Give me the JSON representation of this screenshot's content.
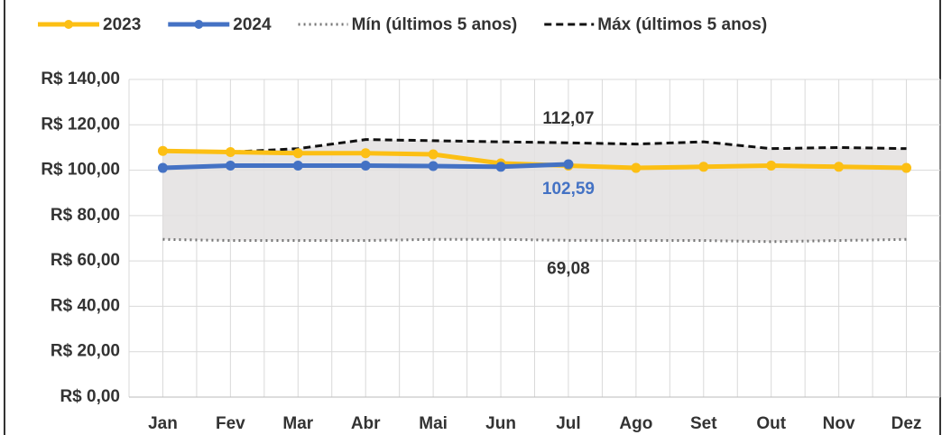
{
  "chart_data": {
    "type": "line",
    "categories": [
      "Jan",
      "Fev",
      "Mar",
      "Abr",
      "Mai",
      "Jun",
      "Jul",
      "Ago",
      "Set",
      "Out",
      "Nov",
      "Dez"
    ],
    "series": [
      {
        "name": "2023",
        "color": "#fcbf14",
        "style": "solid",
        "values": [
          108.5,
          108,
          107.5,
          107.5,
          107,
          103,
          102,
          101,
          101.5,
          102,
          101.5,
          101
        ]
      },
      {
        "name": "2024",
        "color": "#4472c4",
        "style": "solid",
        "values": [
          101,
          102,
          102,
          102,
          101.8,
          101.5,
          102.59,
          null,
          null,
          null,
          null,
          null
        ],
        "value_labels": [
          null,
          null,
          null,
          null,
          null,
          null,
          "102,59",
          null,
          null,
          null,
          null,
          null
        ]
      },
      {
        "name": "Mín (últimos 5 anos)",
        "color": "#777777",
        "style": "dotted",
        "values": [
          69.5,
          69,
          69,
          69,
          69.5,
          69.5,
          69.08,
          69,
          69,
          68.5,
          69,
          69.5
        ],
        "value_labels": [
          null,
          null,
          null,
          null,
          null,
          null,
          "69,08",
          null,
          null,
          null,
          null,
          null
        ]
      },
      {
        "name": "Máx (últimos 5 anos)",
        "color": "#111111",
        "style": "dashed",
        "values": [
          108.5,
          108,
          109.5,
          113.5,
          113,
          112.5,
          112.07,
          111.5,
          112.5,
          109.5,
          110,
          109.5
        ],
        "value_labels": [
          null,
          null,
          null,
          null,
          null,
          null,
          "112,07",
          null,
          null,
          null,
          null,
          null
        ]
      }
    ],
    "ylim": [
      0,
      140
    ],
    "yticks": [
      {
        "value": 0,
        "label": "R$ 0,00"
      },
      {
        "value": 20,
        "label": "R$ 20,00"
      },
      {
        "value": 40,
        "label": "R$ 40,00"
      },
      {
        "value": 60,
        "label": "R$ 60,00"
      },
      {
        "value": 80,
        "label": "R$ 80,00"
      },
      {
        "value": 100,
        "label": "R$ 100,00"
      },
      {
        "value": 120,
        "label": "R$ 120,00"
      },
      {
        "value": 140,
        "label": "R$ 140,00"
      }
    ],
    "grid": true,
    "legend": "top",
    "band_color": "#e3e1e1"
  }
}
